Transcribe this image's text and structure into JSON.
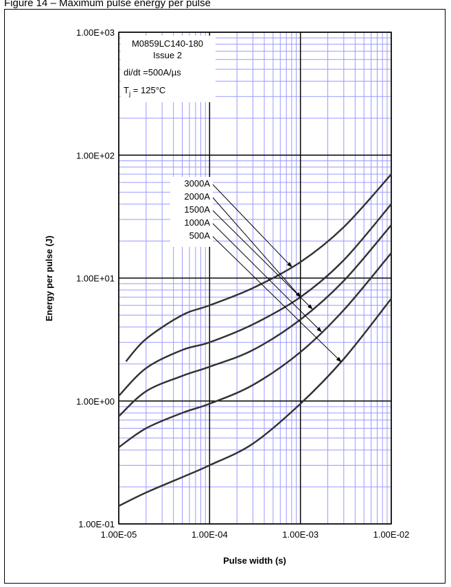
{
  "page_title": "Figure 14 – Maximum pulse energy per pulse",
  "chart_data": {
    "type": "line",
    "title": "",
    "xlabel": "Pulse width (s)",
    "ylabel": "Energy per pulse (J)",
    "x_scale": "log",
    "y_scale": "log",
    "xlim": [
      1e-05,
      0.01
    ],
    "ylim": [
      0.1,
      1000
    ],
    "x_tick_labels": [
      "1.00E-05",
      "1.00E-04",
      "1.00E-03",
      "1.00E-02"
    ],
    "y_tick_labels": [
      "1.00E-01",
      "1.00E+00",
      "1.00E+01",
      "1.00E+02",
      "1.00E+03"
    ],
    "grid": true,
    "annotations": {
      "part_number": "M0859LC140-180",
      "issue": "Issue 2",
      "didt": "di/dt =500A/µs",
      "tj_symbol": "T",
      "tj_sub": "j",
      "tj_value": " = 125°C"
    },
    "series": [
      {
        "name": "3000A",
        "x": [
          1.2e-05,
          2e-05,
          5e-05,
          0.0001,
          0.0003,
          0.001,
          0.003,
          0.01
        ],
        "y": [
          2.1,
          3.2,
          5.0,
          6.0,
          8.3,
          13.5,
          26.0,
          70.0
        ]
      },
      {
        "name": "2000A",
        "x": [
          1e-05,
          2e-05,
          5e-05,
          0.0001,
          0.0003,
          0.001,
          0.003,
          0.01
        ],
        "y": [
          1.1,
          1.85,
          2.6,
          3.0,
          4.2,
          7.0,
          14.0,
          40.0
        ]
      },
      {
        "name": "1500A",
        "x": [
          1e-05,
          2e-05,
          5e-05,
          0.0001,
          0.0003,
          0.001,
          0.003,
          0.01
        ],
        "y": [
          0.75,
          1.2,
          1.6,
          1.9,
          2.6,
          4.6,
          9.5,
          27.0
        ]
      },
      {
        "name": "1000A",
        "x": [
          1e-05,
          2e-05,
          5e-05,
          0.0001,
          0.0003,
          0.001,
          0.003,
          0.01
        ],
        "y": [
          0.42,
          0.6,
          0.8,
          0.95,
          1.35,
          2.5,
          5.5,
          16.0
        ]
      },
      {
        "name": "500A",
        "x": [
          1e-05,
          2e-05,
          5e-05,
          0.0001,
          0.0003,
          0.001,
          0.003,
          0.01
        ],
        "y": [
          0.14,
          0.18,
          0.24,
          0.3,
          0.45,
          0.95,
          2.2,
          6.8
        ]
      }
    ],
    "series_label_order": [
      "3000A",
      "2000A",
      "1500A",
      "1000A",
      "500A"
    ],
    "arrow_targets_x": [
      0.0008,
      0.001,
      0.00135,
      0.0017,
      0.0028
    ],
    "colors": {
      "curve": "#333333",
      "minor_grid": "#9999ff",
      "major_grid": "#000000"
    }
  }
}
